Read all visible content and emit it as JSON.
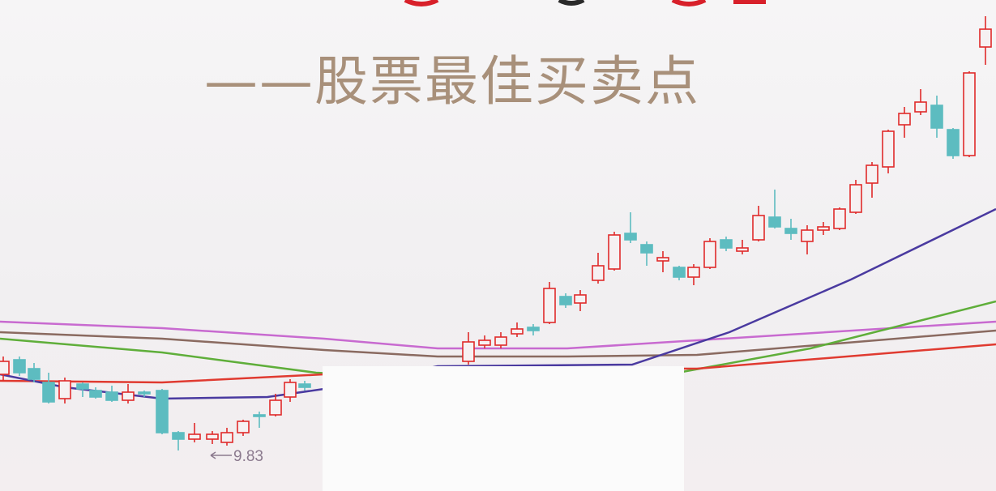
{
  "subtitle": "——股票最佳买卖点",
  "chart_data": {
    "type": "candlestick",
    "low_annotation": "9.83",
    "colors": {
      "up": "#e02a2a",
      "down": "#5dbcc0",
      "ma_purple": "#4a3aa0",
      "ma_green": "#5fae3a",
      "ma_red": "#e03a30",
      "ma_brown": "#8a6a60",
      "ma_pink": "#c86ad0"
    }
  }
}
